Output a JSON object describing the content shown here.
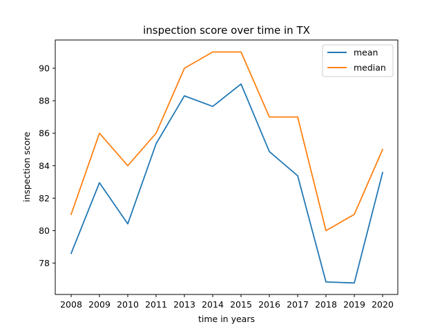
{
  "chart_data": {
    "type": "line",
    "title": "inspection score over time in TX",
    "xlabel": "time in years",
    "ylabel": "inspection score",
    "categories": [
      "2008",
      "2009",
      "2010",
      "2011",
      "2013",
      "2014",
      "2015",
      "2016",
      "2017",
      "2018",
      "2019",
      "2020"
    ],
    "series": [
      {
        "name": "mean",
        "color": "#1f77b4",
        "values": [
          78.6,
          82.95,
          80.42,
          85.35,
          88.3,
          87.65,
          89.03,
          84.87,
          83.38,
          76.84,
          76.78,
          83.58
        ]
      },
      {
        "name": "median",
        "color": "#ff7f0e",
        "values": [
          81,
          86,
          84,
          86,
          90,
          91,
          91,
          87,
          87,
          80,
          81,
          85
        ]
      }
    ],
    "yticks": [
      78,
      80,
      82,
      84,
      86,
      88,
      90
    ],
    "ylim": [
      76.07,
      91.74
    ],
    "grid": false,
    "legend": "top-right"
  }
}
